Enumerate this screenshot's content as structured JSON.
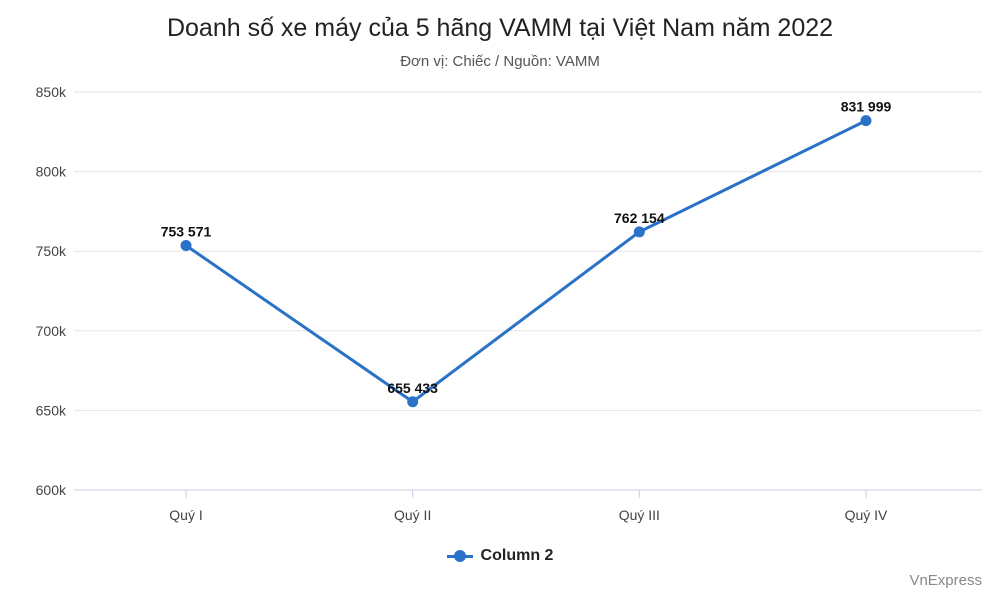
{
  "chart_data": {
    "type": "line",
    "title": "Doanh số xe máy của 5 hãng VAMM tại Việt Nam năm 2022",
    "subtitle": "Đơn vị: Chiếc / Nguồn: VAMM",
    "categories": [
      "Quý I",
      "Quý II",
      "Quý III",
      "Quý IV"
    ],
    "series": [
      {
        "name": "Column 2",
        "values": [
          753571,
          655433,
          762154,
          831999
        ],
        "labels": [
          "753 571",
          "655 433",
          "762 154",
          "831 999"
        ],
        "color": "#2a72c8"
      }
    ],
    "ylim": [
      600000,
      850000
    ],
    "yticks": [
      600000,
      650000,
      700000,
      750000,
      800000,
      850000
    ],
    "ytick_labels": [
      "600k",
      "650k",
      "700k",
      "750k",
      "800k",
      "850k"
    ],
    "grid": true,
    "legend": "bottom-center"
  },
  "credit": "VnExpress"
}
